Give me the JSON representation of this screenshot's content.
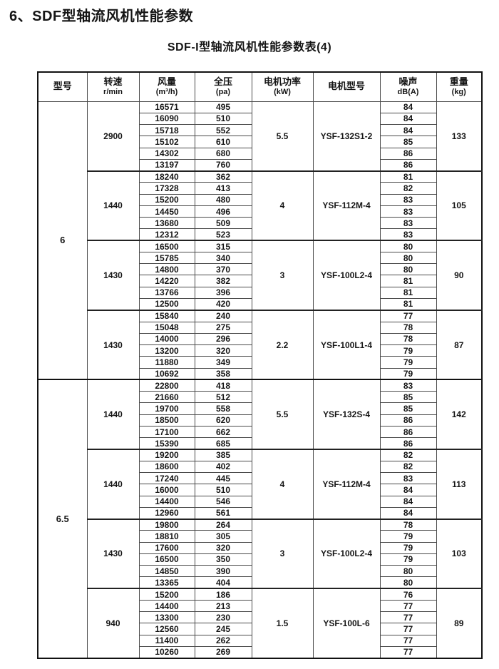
{
  "page_title": "6、SDF型轴流风机性能参数",
  "table_title": "SDF-I型轴流风机性能参数表(4)",
  "table": {
    "headers": [
      {
        "line1": "型号",
        "line2": ""
      },
      {
        "line1": "转速",
        "line2": "r/min"
      },
      {
        "line1": "风量",
        "line2": "(m³/h)"
      },
      {
        "line1": "全压",
        "line2": "(pa)"
      },
      {
        "line1": "电机功率",
        "line2": "(kW)"
      },
      {
        "line1": "电机型号",
        "line2": ""
      },
      {
        "line1": "噪声",
        "line2": "dB(A)"
      },
      {
        "line1": "重量",
        "line2": "(kg)"
      }
    ],
    "column_keys": [
      "model",
      "speed",
      "airflow",
      "pressure",
      "power",
      "motor",
      "noise",
      "weight"
    ],
    "groups": [
      {
        "model": "6",
        "blocks": [
          {
            "speed": "2900",
            "power": "5.5",
            "motor": "YSF-132S1-2",
            "weight": "133",
            "rows": [
              [
                "16571",
                "495",
                "84"
              ],
              [
                "16090",
                "510",
                "84"
              ],
              [
                "15718",
                "552",
                "84"
              ],
              [
                "15102",
                "610",
                "85"
              ],
              [
                "14302",
                "680",
                "86"
              ],
              [
                "13197",
                "760",
                "86"
              ]
            ]
          },
          {
            "speed": "1440",
            "power": "4",
            "motor": "YSF-112M-4",
            "weight": "105",
            "rows": [
              [
                "18240",
                "362",
                "81"
              ],
              [
                "17328",
                "413",
                "82"
              ],
              [
                "15200",
                "480",
                "83"
              ],
              [
                "14450",
                "496",
                "83"
              ],
              [
                "13680",
                "509",
                "83"
              ],
              [
                "12312",
                "523",
                "83"
              ]
            ]
          },
          {
            "speed": "1430",
            "power": "3",
            "motor": "YSF-100L2-4",
            "weight": "90",
            "rows": [
              [
                "16500",
                "315",
                "80"
              ],
              [
                "15785",
                "340",
                "80"
              ],
              [
                "14800",
                "370",
                "80"
              ],
              [
                "14220",
                "382",
                "81"
              ],
              [
                "13766",
                "396",
                "81"
              ],
              [
                "12500",
                "420",
                "81"
              ]
            ]
          },
          {
            "speed": "1430",
            "power": "2.2",
            "motor": "YSF-100L1-4",
            "weight": "87",
            "rows": [
              [
                "15840",
                "240",
                "77"
              ],
              [
                "15048",
                "275",
                "78"
              ],
              [
                "14000",
                "296",
                "78"
              ],
              [
                "13200",
                "320",
                "79"
              ],
              [
                "11880",
                "349",
                "79"
              ],
              [
                "10692",
                "358",
                "79"
              ]
            ]
          }
        ]
      },
      {
        "model": "6.5",
        "blocks": [
          {
            "speed": "1440",
            "power": "5.5",
            "motor": "YSF-132S-4",
            "weight": "142",
            "rows": [
              [
                "22800",
                "418",
                "83"
              ],
              [
                "21660",
                "512",
                "85"
              ],
              [
                "19700",
                "558",
                "85"
              ],
              [
                "18500",
                "620",
                "86"
              ],
              [
                "17100",
                "662",
                "86"
              ],
              [
                "15390",
                "685",
                "86"
              ]
            ]
          },
          {
            "speed": "1440",
            "power": "4",
            "motor": "YSF-112M-4",
            "weight": "113",
            "rows": [
              [
                "19200",
                "385",
                "82"
              ],
              [
                "18600",
                "402",
                "82"
              ],
              [
                "17240",
                "445",
                "83"
              ],
              [
                "16000",
                "510",
                "84"
              ],
              [
                "14400",
                "546",
                "84"
              ],
              [
                "12960",
                "561",
                "84"
              ]
            ]
          },
          {
            "speed": "1430",
            "power": "3",
            "motor": "YSF-100L2-4",
            "weight": "103",
            "rows": [
              [
                "19800",
                "264",
                "78"
              ],
              [
                "18810",
                "305",
                "79"
              ],
              [
                "17600",
                "320",
                "79"
              ],
              [
                "16500",
                "350",
                "79"
              ],
              [
                "14850",
                "390",
                "80"
              ],
              [
                "13365",
                "404",
                "80"
              ]
            ]
          },
          {
            "speed": "940",
            "power": "1.5",
            "motor": "YSF-100L-6",
            "weight": "89",
            "rows": [
              [
                "15200",
                "186",
                "76"
              ],
              [
                "14400",
                "213",
                "77"
              ],
              [
                "13300",
                "230",
                "77"
              ],
              [
                "12560",
                "245",
                "77"
              ],
              [
                "11400",
                "262",
                "77"
              ],
              [
                "10260",
                "269",
                "77"
              ]
            ]
          }
        ]
      }
    ]
  }
}
